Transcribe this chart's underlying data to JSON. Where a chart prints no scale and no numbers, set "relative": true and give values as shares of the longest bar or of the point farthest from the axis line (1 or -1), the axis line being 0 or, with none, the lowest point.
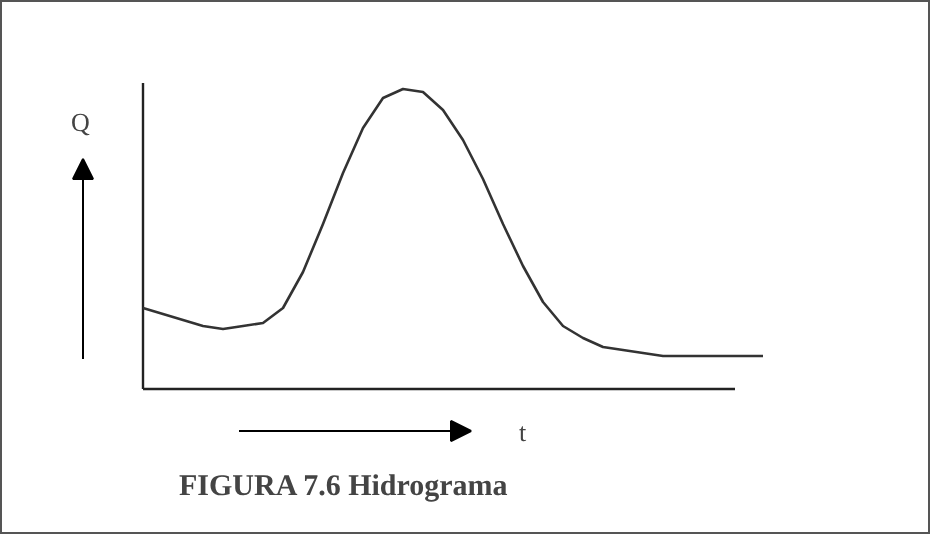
{
  "chart_data": {
    "type": "line",
    "relative": true,
    "title": "FIGURA 7.6 Hidrograma",
    "xlabel": "t",
    "ylabel": "Q",
    "categories": [
      null,
      null,
      null,
      null,
      null,
      null,
      null,
      null,
      null,
      null,
      null,
      null,
      null,
      null,
      null,
      null,
      null,
      null,
      null,
      null,
      null,
      null,
      null,
      null,
      null,
      null,
      null,
      null,
      null,
      null,
      null,
      null
    ],
    "series": [
      {
        "color": "#333333",
        "values": [
          0.27,
          0.25,
          0.23,
          0.21,
          0.2,
          0.21,
          0.22,
          0.27,
          0.39,
          0.55,
          0.72,
          0.87,
          0.97,
          1,
          0.99,
          0.93,
          0.83,
          0.7,
          0.55,
          0.41,
          0.29,
          0.21,
          0.17,
          0.14,
          0.13,
          0.12,
          0.11,
          0.11,
          0.11,
          0.11,
          0.11,
          0.11
        ]
      }
    ],
    "marker": "none",
    "line_style": "solid"
  }
}
